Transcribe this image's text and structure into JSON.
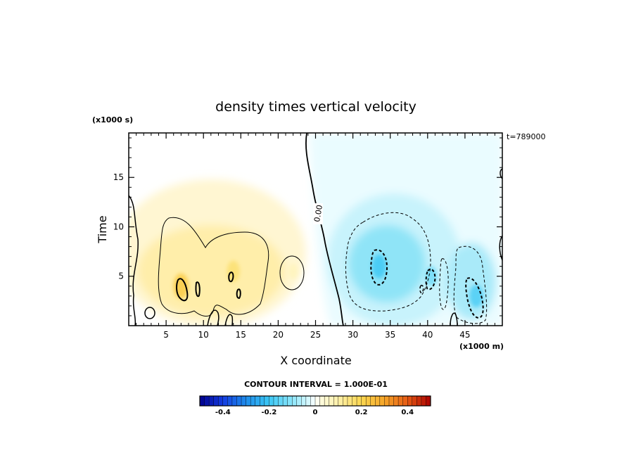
{
  "chart_data": {
    "type": "heatmap",
    "title": "density times vertical velocity",
    "xlabel": "X coordinate",
    "ylabel": "Time",
    "x_unit": "(x1000 m)",
    "y_unit": "(x1000 s)",
    "time_label": "t=789000",
    "xlim": [
      0,
      50
    ],
    "ylim": [
      0,
      19.5
    ],
    "xticks": [
      5,
      10,
      15,
      20,
      25,
      30,
      35,
      40,
      45
    ],
    "yticks": [
      5,
      10,
      15
    ],
    "zero_contour_label": "0.00",
    "contour_interval_text": "CONTOUR INTERVAL = 1.000E-01",
    "colorbar": {
      "range": [
        -0.5,
        0.5
      ],
      "ticks": [
        "-0.4",
        "-0.2",
        "0",
        "0.2",
        "0.4"
      ],
      "tick_values": [
        -0.4,
        -0.2,
        0,
        0.2,
        0.4
      ]
    },
    "features": [
      {
        "kind": "positive",
        "x": 7.0,
        "y": 4.0,
        "peak": 0.25
      },
      {
        "kind": "positive",
        "x": 14.0,
        "y": 5.5,
        "peak": 0.18
      },
      {
        "kind": "positive",
        "x": 22.0,
        "y": 5.5,
        "peak": 0.08
      },
      {
        "kind": "negative",
        "x": 33.5,
        "y": 6.0,
        "peak": -0.22
      },
      {
        "kind": "negative",
        "x": 40.5,
        "y": 5.0,
        "peak": -0.15
      },
      {
        "kind": "negative",
        "x": 46.5,
        "y": 3.0,
        "peak": -0.2
      }
    ]
  }
}
